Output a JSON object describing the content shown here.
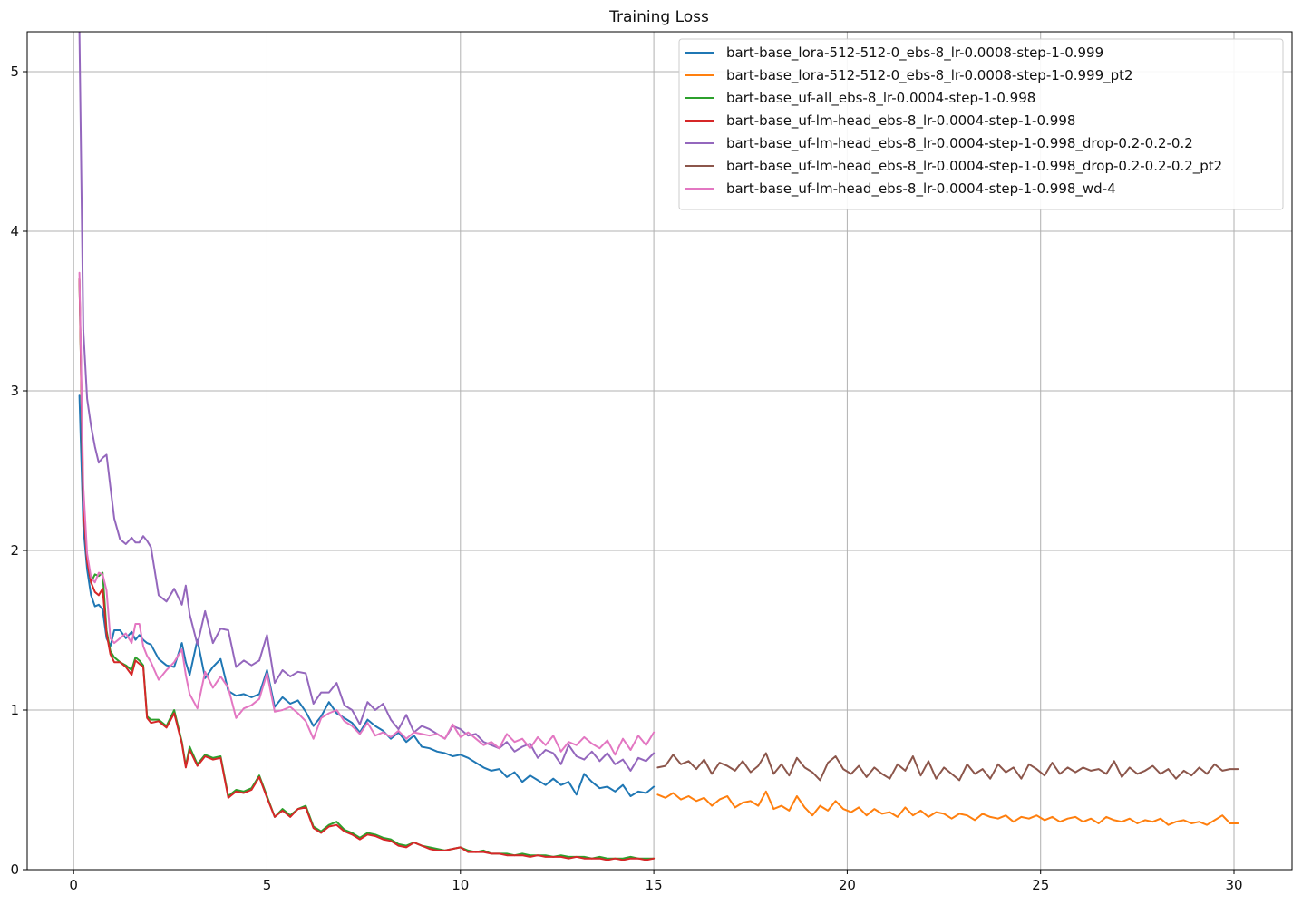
{
  "chart_data": {
    "type": "line",
    "title": "Training Loss",
    "xlabel": "",
    "ylabel": "",
    "xlim": [
      -1.2,
      31.5
    ],
    "ylim": [
      0,
      5.25
    ],
    "xticks": [
      0,
      5,
      10,
      15,
      20,
      25,
      30
    ],
    "yticks": [
      0,
      1,
      2,
      3,
      4,
      5
    ],
    "grid": true,
    "legend_position": "top-right",
    "series": [
      {
        "name": "bart-base_lora-512-512-0_ebs-8_lr-0.0008-step-1-0.999",
        "color": "#1f77b4",
        "x": [
          0.15,
          0.25,
          0.35,
          0.45,
          0.55,
          0.65,
          0.75,
          0.85,
          0.95,
          1.05,
          1.2,
          1.35,
          1.5,
          1.6,
          1.7,
          1.8,
          1.9,
          2.0,
          2.2,
          2.4,
          2.6,
          2.8,
          2.9,
          3.0,
          3.2,
          3.4,
          3.6,
          3.8,
          4.0,
          4.2,
          4.4,
          4.6,
          4.8,
          5.0,
          5.2,
          5.4,
          5.6,
          5.8,
          6.0,
          6.2,
          6.4,
          6.6,
          6.8,
          7.0,
          7.2,
          7.4,
          7.6,
          7.8,
          8.0,
          8.2,
          8.4,
          8.6,
          8.8,
          9.0,
          9.2,
          9.4,
          9.6,
          9.8,
          10.0,
          10.2,
          10.4,
          10.6,
          10.8,
          11.0,
          11.2,
          11.4,
          11.6,
          11.8,
          12.0,
          12.2,
          12.4,
          12.6,
          12.8,
          13.0,
          13.2,
          13.4,
          13.6,
          13.8,
          14.0,
          14.2,
          14.4,
          14.6,
          14.8,
          15.0
        ],
        "y": [
          2.97,
          2.15,
          1.88,
          1.72,
          1.65,
          1.66,
          1.63,
          1.45,
          1.4,
          1.5,
          1.5,
          1.45,
          1.49,
          1.44,
          1.47,
          1.44,
          1.42,
          1.41,
          1.32,
          1.28,
          1.27,
          1.42,
          1.3,
          1.22,
          1.44,
          1.2,
          1.27,
          1.32,
          1.12,
          1.09,
          1.1,
          1.08,
          1.1,
          1.25,
          1.02,
          1.08,
          1.04,
          1.06,
          0.99,
          0.9,
          0.96,
          1.05,
          0.98,
          0.95,
          0.92,
          0.86,
          0.94,
          0.9,
          0.87,
          0.82,
          0.86,
          0.8,
          0.84,
          0.77,
          0.76,
          0.74,
          0.73,
          0.71,
          0.72,
          0.7,
          0.67,
          0.64,
          0.62,
          0.63,
          0.58,
          0.61,
          0.55,
          0.59,
          0.56,
          0.53,
          0.57,
          0.53,
          0.55,
          0.47,
          0.6,
          0.55,
          0.51,
          0.52,
          0.49,
          0.53,
          0.46,
          0.49,
          0.48,
          0.52
        ]
      },
      {
        "name": "bart-base_lora-512-512-0_ebs-8_lr-0.0008-step-1-0.999_pt2",
        "color": "#ff7f0e",
        "x": [
          15.1,
          15.3,
          15.5,
          15.7,
          15.9,
          16.1,
          16.3,
          16.5,
          16.7,
          16.9,
          17.1,
          17.3,
          17.5,
          17.7,
          17.9,
          18.1,
          18.3,
          18.5,
          18.7,
          18.9,
          19.1,
          19.3,
          19.5,
          19.7,
          19.9,
          20.1,
          20.3,
          20.5,
          20.7,
          20.9,
          21.1,
          21.3,
          21.5,
          21.7,
          21.9,
          22.1,
          22.3,
          22.5,
          22.7,
          22.9,
          23.1,
          23.3,
          23.5,
          23.7,
          23.9,
          24.1,
          24.3,
          24.5,
          24.7,
          24.9,
          25.1,
          25.3,
          25.5,
          25.7,
          25.9,
          26.1,
          26.3,
          26.5,
          26.7,
          26.9,
          27.1,
          27.3,
          27.5,
          27.7,
          27.9,
          28.1,
          28.3,
          28.5,
          28.7,
          28.9,
          29.1,
          29.3,
          29.5,
          29.7,
          29.9,
          30.1
        ],
        "y": [
          0.47,
          0.45,
          0.48,
          0.44,
          0.46,
          0.43,
          0.45,
          0.4,
          0.44,
          0.46,
          0.39,
          0.42,
          0.43,
          0.4,
          0.49,
          0.38,
          0.4,
          0.37,
          0.46,
          0.39,
          0.34,
          0.4,
          0.37,
          0.43,
          0.38,
          0.36,
          0.39,
          0.34,
          0.38,
          0.35,
          0.36,
          0.33,
          0.39,
          0.34,
          0.37,
          0.33,
          0.36,
          0.35,
          0.32,
          0.35,
          0.34,
          0.31,
          0.35,
          0.33,
          0.32,
          0.34,
          0.3,
          0.33,
          0.32,
          0.34,
          0.31,
          0.33,
          0.3,
          0.32,
          0.33,
          0.3,
          0.32,
          0.29,
          0.33,
          0.31,
          0.3,
          0.32,
          0.29,
          0.31,
          0.3,
          0.32,
          0.28,
          0.3,
          0.31,
          0.29,
          0.3,
          0.28,
          0.31,
          0.34,
          0.29,
          0.29
        ]
      },
      {
        "name": "bart-base_uf-all_ebs-8_lr-0.0004-step-1-0.998",
        "color": "#2ca02c",
        "x": [
          0.15,
          0.25,
          0.35,
          0.45,
          0.55,
          0.65,
          0.75,
          0.85,
          0.95,
          1.05,
          1.2,
          1.35,
          1.5,
          1.6,
          1.7,
          1.8,
          1.9,
          2.0,
          2.2,
          2.4,
          2.6,
          2.8,
          2.9,
          3.0,
          3.2,
          3.4,
          3.6,
          3.8,
          4.0,
          4.2,
          4.4,
          4.6,
          4.8,
          5.0,
          5.2,
          5.4,
          5.6,
          5.8,
          6.0,
          6.2,
          6.4,
          6.6,
          6.8,
          7.0,
          7.2,
          7.4,
          7.6,
          7.8,
          8.0,
          8.2,
          8.4,
          8.6,
          8.8,
          9.0,
          9.2,
          9.4,
          9.6,
          9.8,
          10.0,
          10.2,
          10.4,
          10.6,
          10.8,
          11.0,
          11.2,
          11.4,
          11.6,
          11.8,
          12.0,
          12.2,
          12.4,
          12.6,
          12.8,
          13.0,
          13.2,
          13.4,
          13.6,
          13.8,
          14.0,
          14.2,
          14.4,
          14.6,
          14.8,
          15.0
        ],
        "y": [
          3.7,
          2.3,
          1.95,
          1.8,
          1.85,
          1.84,
          1.86,
          1.5,
          1.37,
          1.33,
          1.3,
          1.28,
          1.25,
          1.33,
          1.31,
          1.28,
          0.96,
          0.94,
          0.94,
          0.9,
          1.0,
          0.8,
          0.65,
          0.77,
          0.66,
          0.72,
          0.7,
          0.71,
          0.46,
          0.5,
          0.49,
          0.51,
          0.59,
          0.46,
          0.33,
          0.38,
          0.34,
          0.38,
          0.4,
          0.27,
          0.24,
          0.28,
          0.3,
          0.25,
          0.23,
          0.2,
          0.23,
          0.22,
          0.2,
          0.19,
          0.16,
          0.15,
          0.17,
          0.15,
          0.14,
          0.13,
          0.12,
          0.13,
          0.14,
          0.12,
          0.11,
          0.12,
          0.1,
          0.1,
          0.1,
          0.09,
          0.1,
          0.09,
          0.09,
          0.09,
          0.08,
          0.09,
          0.08,
          0.08,
          0.08,
          0.07,
          0.08,
          0.07,
          0.07,
          0.07,
          0.08,
          0.07,
          0.07,
          0.07
        ]
      },
      {
        "name": "bart-base_uf-lm-head_ebs-8_lr-0.0004-step-1-0.998",
        "color": "#d62728",
        "x": [
          0.15,
          0.25,
          0.35,
          0.45,
          0.55,
          0.65,
          0.75,
          0.85,
          0.95,
          1.05,
          1.2,
          1.35,
          1.5,
          1.6,
          1.7,
          1.8,
          1.9,
          2.0,
          2.2,
          2.4,
          2.6,
          2.8,
          2.9,
          3.0,
          3.2,
          3.4,
          3.6,
          3.8,
          4.0,
          4.2,
          4.4,
          4.6,
          4.8,
          5.0,
          5.2,
          5.4,
          5.6,
          5.8,
          6.0,
          6.2,
          6.4,
          6.6,
          6.8,
          7.0,
          7.2,
          7.4,
          7.6,
          7.8,
          8.0,
          8.2,
          8.4,
          8.6,
          8.8,
          9.0,
          9.2,
          9.4,
          9.6,
          9.8,
          10.0,
          10.2,
          10.4,
          10.6,
          10.8,
          11.0,
          11.2,
          11.4,
          11.6,
          11.8,
          12.0,
          12.2,
          12.4,
          12.6,
          12.8,
          13.0,
          13.2,
          13.4,
          13.6,
          13.8,
          14.0,
          14.2,
          14.4,
          14.6,
          14.8,
          15.0
        ],
        "y": [
          3.7,
          2.28,
          1.93,
          1.8,
          1.74,
          1.72,
          1.76,
          1.48,
          1.35,
          1.3,
          1.3,
          1.27,
          1.22,
          1.31,
          1.29,
          1.27,
          0.95,
          0.92,
          0.93,
          0.89,
          0.98,
          0.79,
          0.64,
          0.75,
          0.65,
          0.71,
          0.69,
          0.7,
          0.45,
          0.49,
          0.48,
          0.5,
          0.58,
          0.45,
          0.33,
          0.37,
          0.33,
          0.38,
          0.39,
          0.26,
          0.23,
          0.27,
          0.28,
          0.24,
          0.22,
          0.19,
          0.22,
          0.21,
          0.19,
          0.18,
          0.15,
          0.14,
          0.17,
          0.15,
          0.13,
          0.12,
          0.12,
          0.13,
          0.14,
          0.11,
          0.11,
          0.11,
          0.1,
          0.1,
          0.09,
          0.09,
          0.09,
          0.08,
          0.09,
          0.08,
          0.08,
          0.08,
          0.07,
          0.08,
          0.07,
          0.07,
          0.07,
          0.06,
          0.07,
          0.06,
          0.07,
          0.07,
          0.06,
          0.07
        ]
      },
      {
        "name": "bart-base_uf-lm-head_ebs-8_lr-0.0004-step-1-0.998_drop-0.2-0.2-0.2",
        "color": "#9467bd",
        "x": [
          0.15,
          0.25,
          0.35,
          0.45,
          0.55,
          0.65,
          0.75,
          0.85,
          0.95,
          1.05,
          1.2,
          1.35,
          1.5,
          1.6,
          1.7,
          1.8,
          1.9,
          2.0,
          2.2,
          2.4,
          2.6,
          2.8,
          2.9,
          3.0,
          3.2,
          3.4,
          3.6,
          3.8,
          4.0,
          4.2,
          4.4,
          4.6,
          4.8,
          5.0,
          5.2,
          5.4,
          5.6,
          5.8,
          6.0,
          6.2,
          6.4,
          6.6,
          6.8,
          7.0,
          7.2,
          7.4,
          7.6,
          7.8,
          8.0,
          8.2,
          8.4,
          8.6,
          8.8,
          9.0,
          9.2,
          9.4,
          9.6,
          9.8,
          10.0,
          10.2,
          10.4,
          10.6,
          10.8,
          11.0,
          11.2,
          11.4,
          11.6,
          11.8,
          12.0,
          12.2,
          12.4,
          12.6,
          12.8,
          13.0,
          13.2,
          13.4,
          13.6,
          13.8,
          14.0,
          14.2,
          14.4,
          14.6,
          14.8,
          15.0
        ],
        "y": [
          5.25,
          3.38,
          2.95,
          2.78,
          2.65,
          2.55,
          2.58,
          2.6,
          2.4,
          2.2,
          2.07,
          2.04,
          2.08,
          2.05,
          2.05,
          2.09,
          2.06,
          2.02,
          1.72,
          1.68,
          1.76,
          1.66,
          1.78,
          1.6,
          1.41,
          1.62,
          1.42,
          1.51,
          1.5,
          1.27,
          1.31,
          1.28,
          1.31,
          1.47,
          1.17,
          1.25,
          1.21,
          1.24,
          1.23,
          1.04,
          1.11,
          1.11,
          1.17,
          1.03,
          1.0,
          0.91,
          1.05,
          1.0,
          1.04,
          0.94,
          0.88,
          0.97,
          0.86,
          0.9,
          0.88,
          0.85,
          0.82,
          0.9,
          0.88,
          0.84,
          0.85,
          0.8,
          0.78,
          0.76,
          0.8,
          0.74,
          0.77,
          0.79,
          0.7,
          0.75,
          0.73,
          0.66,
          0.78,
          0.71,
          0.69,
          0.74,
          0.68,
          0.73,
          0.66,
          0.69,
          0.62,
          0.7,
          0.68,
          0.73
        ]
      },
      {
        "name": "bart-base_uf-lm-head_ebs-8_lr-0.0004-step-1-0.998_drop-0.2-0.2-0.2_pt2",
        "color": "#8c564b",
        "x": [
          15.1,
          15.3,
          15.5,
          15.7,
          15.9,
          16.1,
          16.3,
          16.5,
          16.7,
          16.9,
          17.1,
          17.3,
          17.5,
          17.7,
          17.9,
          18.1,
          18.3,
          18.5,
          18.7,
          18.9,
          19.1,
          19.3,
          19.5,
          19.7,
          19.9,
          20.1,
          20.3,
          20.5,
          20.7,
          20.9,
          21.1,
          21.3,
          21.5,
          21.7,
          21.9,
          22.1,
          22.3,
          22.5,
          22.7,
          22.9,
          23.1,
          23.3,
          23.5,
          23.7,
          23.9,
          24.1,
          24.3,
          24.5,
          24.7,
          24.9,
          25.1,
          25.3,
          25.5,
          25.7,
          25.9,
          26.1,
          26.3,
          26.5,
          26.7,
          26.9,
          27.1,
          27.3,
          27.5,
          27.7,
          27.9,
          28.1,
          28.3,
          28.5,
          28.7,
          28.9,
          29.1,
          29.3,
          29.5,
          29.7,
          29.9,
          30.1
        ],
        "y": [
          0.64,
          0.65,
          0.72,
          0.66,
          0.68,
          0.63,
          0.69,
          0.6,
          0.67,
          0.65,
          0.62,
          0.68,
          0.61,
          0.65,
          0.73,
          0.6,
          0.66,
          0.59,
          0.7,
          0.64,
          0.61,
          0.56,
          0.67,
          0.71,
          0.63,
          0.6,
          0.65,
          0.58,
          0.64,
          0.6,
          0.57,
          0.66,
          0.62,
          0.71,
          0.59,
          0.68,
          0.57,
          0.64,
          0.6,
          0.56,
          0.66,
          0.6,
          0.63,
          0.57,
          0.66,
          0.61,
          0.64,
          0.57,
          0.66,
          0.63,
          0.59,
          0.67,
          0.6,
          0.64,
          0.61,
          0.64,
          0.62,
          0.63,
          0.6,
          0.68,
          0.58,
          0.64,
          0.6,
          0.62,
          0.65,
          0.6,
          0.63,
          0.57,
          0.62,
          0.59,
          0.64,
          0.6,
          0.66,
          0.62,
          0.63,
          0.63
        ]
      },
      {
        "name": "bart-base_uf-lm-head_ebs-8_lr-0.0004-step-1-0.998_wd-4",
        "color": "#e377c2",
        "x": [
          0.15,
          0.25,
          0.35,
          0.45,
          0.55,
          0.65,
          0.75,
          0.85,
          0.95,
          1.05,
          1.2,
          1.35,
          1.5,
          1.6,
          1.7,
          1.8,
          1.9,
          2.0,
          2.2,
          2.4,
          2.6,
          2.8,
          2.9,
          3.0,
          3.2,
          3.4,
          3.6,
          3.8,
          4.0,
          4.2,
          4.4,
          4.6,
          4.8,
          5.0,
          5.2,
          5.4,
          5.6,
          5.8,
          6.0,
          6.2,
          6.4,
          6.6,
          6.8,
          7.0,
          7.2,
          7.4,
          7.6,
          7.8,
          8.0,
          8.2,
          8.4,
          8.6,
          8.8,
          9.0,
          9.2,
          9.4,
          9.6,
          9.8,
          10.0,
          10.2,
          10.4,
          10.6,
          10.8,
          11.0,
          11.2,
          11.4,
          11.6,
          11.8,
          12.0,
          12.2,
          12.4,
          12.6,
          12.8,
          13.0,
          13.2,
          13.4,
          13.6,
          13.8,
          14.0,
          14.2,
          14.4,
          14.6,
          14.8,
          15.0
        ],
        "y": [
          3.74,
          2.4,
          1.98,
          1.83,
          1.8,
          1.86,
          1.85,
          1.75,
          1.45,
          1.42,
          1.45,
          1.48,
          1.42,
          1.54,
          1.54,
          1.4,
          1.34,
          1.3,
          1.19,
          1.25,
          1.3,
          1.38,
          1.22,
          1.1,
          1.01,
          1.24,
          1.14,
          1.21,
          1.14,
          0.95,
          1.01,
          1.03,
          1.07,
          1.23,
          0.99,
          1.0,
          1.02,
          0.98,
          0.93,
          0.82,
          0.95,
          0.98,
          1.0,
          0.93,
          0.9,
          0.85,
          0.92,
          0.84,
          0.86,
          0.83,
          0.87,
          0.82,
          0.86,
          0.85,
          0.84,
          0.85,
          0.82,
          0.91,
          0.83,
          0.86,
          0.82,
          0.78,
          0.8,
          0.76,
          0.85,
          0.8,
          0.82,
          0.76,
          0.83,
          0.78,
          0.84,
          0.74,
          0.8,
          0.78,
          0.83,
          0.79,
          0.76,
          0.81,
          0.72,
          0.82,
          0.75,
          0.84,
          0.78,
          0.86
        ]
      }
    ]
  }
}
